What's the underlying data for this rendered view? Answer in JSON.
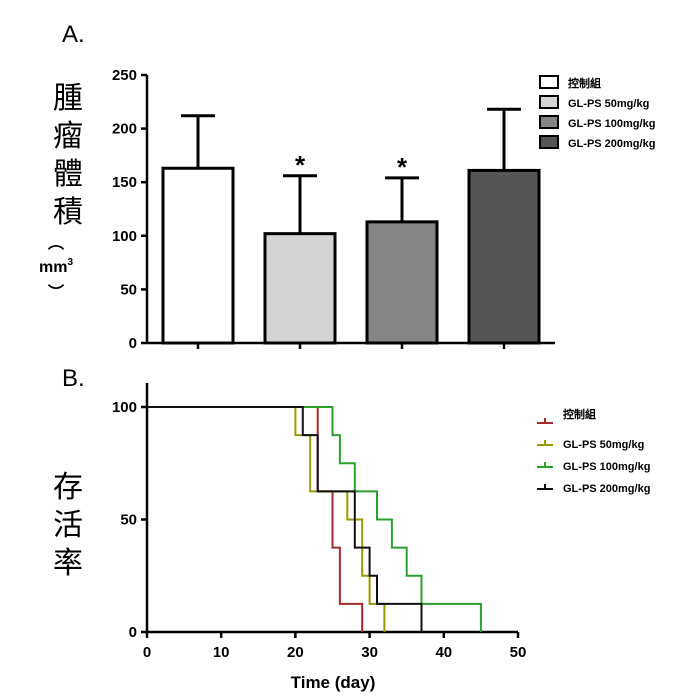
{
  "chart_data": [
    {
      "type": "bar",
      "panel_label": "A.",
      "ylabel": "腫瘤體積",
      "ylabel_unit_paren_open": "︵",
      "ylabel_unit": "mm",
      "ylabel_unit_sup": "3",
      "ylabel_unit_paren_close": "︶",
      "ylim": [
        0,
        250
      ],
      "yticks": [
        0,
        50,
        100,
        150,
        200,
        250
      ],
      "categories": [
        "控制組",
        "GL-PS 50mg/kg",
        "GL-PS 100mg/kg",
        "GL-PS 200mg/kg"
      ],
      "values": [
        163,
        102,
        113,
        161
      ],
      "errors": [
        49,
        54,
        41,
        57
      ],
      "significance": [
        "",
        "*",
        "*",
        ""
      ],
      "colors": [
        "#ffffff",
        "#d4d4d4",
        "#858585",
        "#555555"
      ],
      "legend": {
        "position": "top-right",
        "entries": [
          "控制組",
          "GL-PS 50mg/kg",
          "GL-PS 100mg/kg",
          "GL-PS 200mg/kg"
        ]
      }
    },
    {
      "type": "line",
      "subtype": "step",
      "panel_label": "B.",
      "ylabel": "存活率",
      "xlabel": "Time (day)",
      "xlim": [
        0,
        50
      ],
      "ylim": [
        0,
        100
      ],
      "xticks": [
        0,
        10,
        20,
        30,
        40,
        50
      ],
      "yticks": [
        0,
        50,
        100
      ],
      "series": [
        {
          "name": "控制組",
          "color": "#a52a2a",
          "points": [
            [
              0,
              100
            ],
            [
              23,
              100
            ],
            [
              23,
              62.5
            ],
            [
              25,
              62.5
            ],
            [
              25,
              37.5
            ],
            [
              26,
              37.5
            ],
            [
              26,
              12.5
            ],
            [
              29,
              12.5
            ],
            [
              29,
              0
            ]
          ]
        },
        {
          "name": "GL-PS 50mg/kg",
          "color": "#999900",
          "points": [
            [
              0,
              100
            ],
            [
              20,
              100
            ],
            [
              20,
              87.5
            ],
            [
              22,
              87.5
            ],
            [
              22,
              62.5
            ],
            [
              27,
              62.5
            ],
            [
              27,
              50
            ],
            [
              29,
              50
            ],
            [
              29,
              25
            ],
            [
              30,
              25
            ],
            [
              30,
              12.5
            ],
            [
              32,
              12.5
            ],
            [
              32,
              0
            ]
          ]
        },
        {
          "name": "GL-PS 100mg/kg",
          "color": "#2ca02c",
          "points": [
            [
              0,
              100
            ],
            [
              25,
              100
            ],
            [
              25,
              87.5
            ],
            [
              26,
              87.5
            ],
            [
              26,
              75
            ],
            [
              28,
              75
            ],
            [
              28,
              62.5
            ],
            [
              31,
              62.5
            ],
            [
              31,
              50
            ],
            [
              33,
              50
            ],
            [
              33,
              37.5
            ],
            [
              35,
              37.5
            ],
            [
              35,
              25
            ],
            [
              37,
              25
            ],
            [
              37,
              12.5
            ],
            [
              45,
              12.5
            ],
            [
              45,
              0
            ]
          ]
        },
        {
          "name": "GL-PS 200mg/kg",
          "color": "#111111",
          "points": [
            [
              0,
              100
            ],
            [
              21,
              100
            ],
            [
              21,
              87.5
            ],
            [
              23,
              87.5
            ],
            [
              23,
              62.5
            ],
            [
              28,
              62.5
            ],
            [
              28,
              37.5
            ],
            [
              30,
              37.5
            ],
            [
              30,
              25
            ],
            [
              31,
              25
            ],
            [
              31,
              12.5
            ],
            [
              37,
              12.5
            ],
            [
              37,
              0
            ]
          ]
        }
      ],
      "legend": {
        "position": "top-right",
        "entries": [
          "控制組",
          "GL-PS 50mg/kg",
          "GL-PS 100mg/kg",
          "GL-PS 200mg/kg"
        ]
      }
    }
  ]
}
